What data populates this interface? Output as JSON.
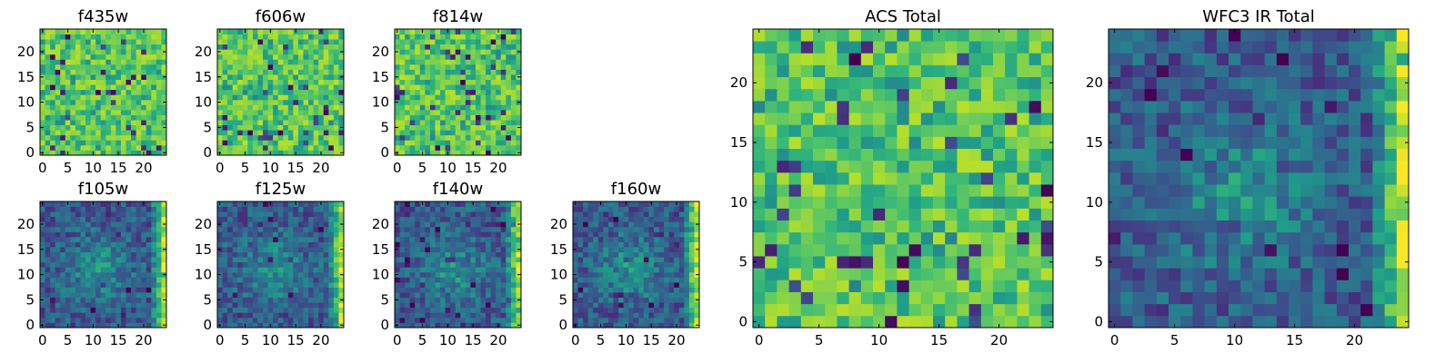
{
  "chart_data": [
    {
      "type": "heatmap",
      "title": "f435w",
      "xticks": [
        "0",
        "5",
        "10",
        "15",
        "20"
      ],
      "yticks": [
        "0",
        "5",
        "10",
        "15",
        "20"
      ],
      "grid_size": 25,
      "xlim": [
        0,
        24
      ],
      "ylim": [
        0,
        24
      ],
      "colormap": "viridis",
      "pattern": "uniform-noise",
      "grid": false,
      "legend": "none"
    },
    {
      "type": "heatmap",
      "title": "f606w",
      "xticks": [
        "0",
        "5",
        "10",
        "15",
        "20"
      ],
      "yticks": [
        "0",
        "5",
        "10",
        "15",
        "20"
      ],
      "grid_size": 25,
      "xlim": [
        0,
        24
      ],
      "ylim": [
        0,
        24
      ],
      "colormap": "viridis",
      "pattern": "uniform-noise",
      "grid": false,
      "legend": "none"
    },
    {
      "type": "heatmap",
      "title": "f814w",
      "xticks": [
        "0",
        "5",
        "10",
        "15",
        "20"
      ],
      "yticks": [
        "0",
        "5",
        "10",
        "15",
        "20"
      ],
      "grid_size": 25,
      "xlim": [
        0,
        24
      ],
      "ylim": [
        0,
        24
      ],
      "colormap": "viridis",
      "pattern": "uniform-noise",
      "grid": false,
      "legend": "none"
    },
    {
      "type": "heatmap",
      "title": "f105w",
      "xticks": [
        "0",
        "5",
        "10",
        "15",
        "20"
      ],
      "yticks": [
        "0",
        "5",
        "10",
        "15",
        "20"
      ],
      "grid_size": 25,
      "xlim": [
        0,
        24
      ],
      "ylim": [
        0,
        24
      ],
      "colormap": "viridis",
      "pattern": "central-source-bright-right-edge",
      "grid": false,
      "legend": "none"
    },
    {
      "type": "heatmap",
      "title": "f125w",
      "xticks": [
        "0",
        "5",
        "10",
        "15",
        "20"
      ],
      "yticks": [
        "0",
        "5",
        "10",
        "15",
        "20"
      ],
      "grid_size": 25,
      "xlim": [
        0,
        24
      ],
      "ylim": [
        0,
        24
      ],
      "colormap": "viridis",
      "pattern": "central-source-bright-right-edge",
      "grid": false,
      "legend": "none"
    },
    {
      "type": "heatmap",
      "title": "f140w",
      "xticks": [
        "0",
        "5",
        "10",
        "15",
        "20"
      ],
      "yticks": [
        "0",
        "5",
        "10",
        "15",
        "20"
      ],
      "grid_size": 25,
      "xlim": [
        0,
        24
      ],
      "ylim": [
        0,
        24
      ],
      "colormap": "viridis",
      "pattern": "central-source-bright-right-edge",
      "grid": false,
      "legend": "none"
    },
    {
      "type": "heatmap",
      "title": "f160w",
      "xticks": [
        "0",
        "5",
        "10",
        "15",
        "20"
      ],
      "yticks": [
        "0",
        "5",
        "10",
        "15",
        "20"
      ],
      "grid_size": 25,
      "xlim": [
        0,
        24
      ],
      "ylim": [
        0,
        24
      ],
      "colormap": "viridis",
      "pattern": "central-source-bright-right-edge",
      "grid": false,
      "legend": "none"
    },
    {
      "type": "heatmap",
      "title": "ACS Total",
      "xticks": [
        "0",
        "5",
        "10",
        "15",
        "20"
      ],
      "yticks": [
        "0",
        "5",
        "10",
        "15",
        "20"
      ],
      "grid_size": 25,
      "xlim": [
        0,
        24
      ],
      "ylim": [
        0,
        24
      ],
      "colormap": "viridis",
      "pattern": "uniform-noise",
      "grid": false,
      "legend": "none"
    },
    {
      "type": "heatmap",
      "title": "WFC3 IR Total",
      "xticks": [
        "0",
        "5",
        "10",
        "15",
        "20"
      ],
      "yticks": [
        "0",
        "5",
        "10",
        "15",
        "20"
      ],
      "grid_size": 25,
      "xlim": [
        0,
        24
      ],
      "ylim": [
        0,
        24
      ],
      "colormap": "viridis",
      "pattern": "central-source-bright-right-edge",
      "grid": false,
      "legend": "none"
    }
  ]
}
